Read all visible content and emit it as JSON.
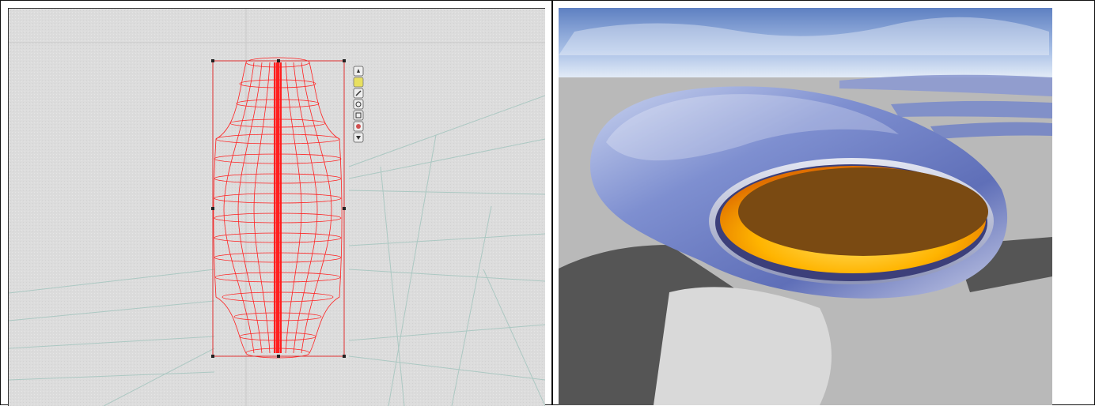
{
  "left_view": {
    "title": "",
    "toolbar_icons": [
      "select-arrow-icon",
      "yellow-square-icon",
      "move-handle-icon",
      "scale-icon",
      "frame-icon",
      "grid-icon",
      "dropdown-arrow-icon"
    ],
    "wire_color": "#ff2020",
    "grid_color": "#a7c6c0",
    "background_color": "#dedede"
  },
  "right_view": {
    "sky_top_color": "#5e80c2",
    "ground_color": "#b9b9b9",
    "shadow_color": "#555555",
    "shell_color": "#8d9ad0",
    "glow_color": "#ffb400",
    "interior_color": "#7a4a12"
  }
}
